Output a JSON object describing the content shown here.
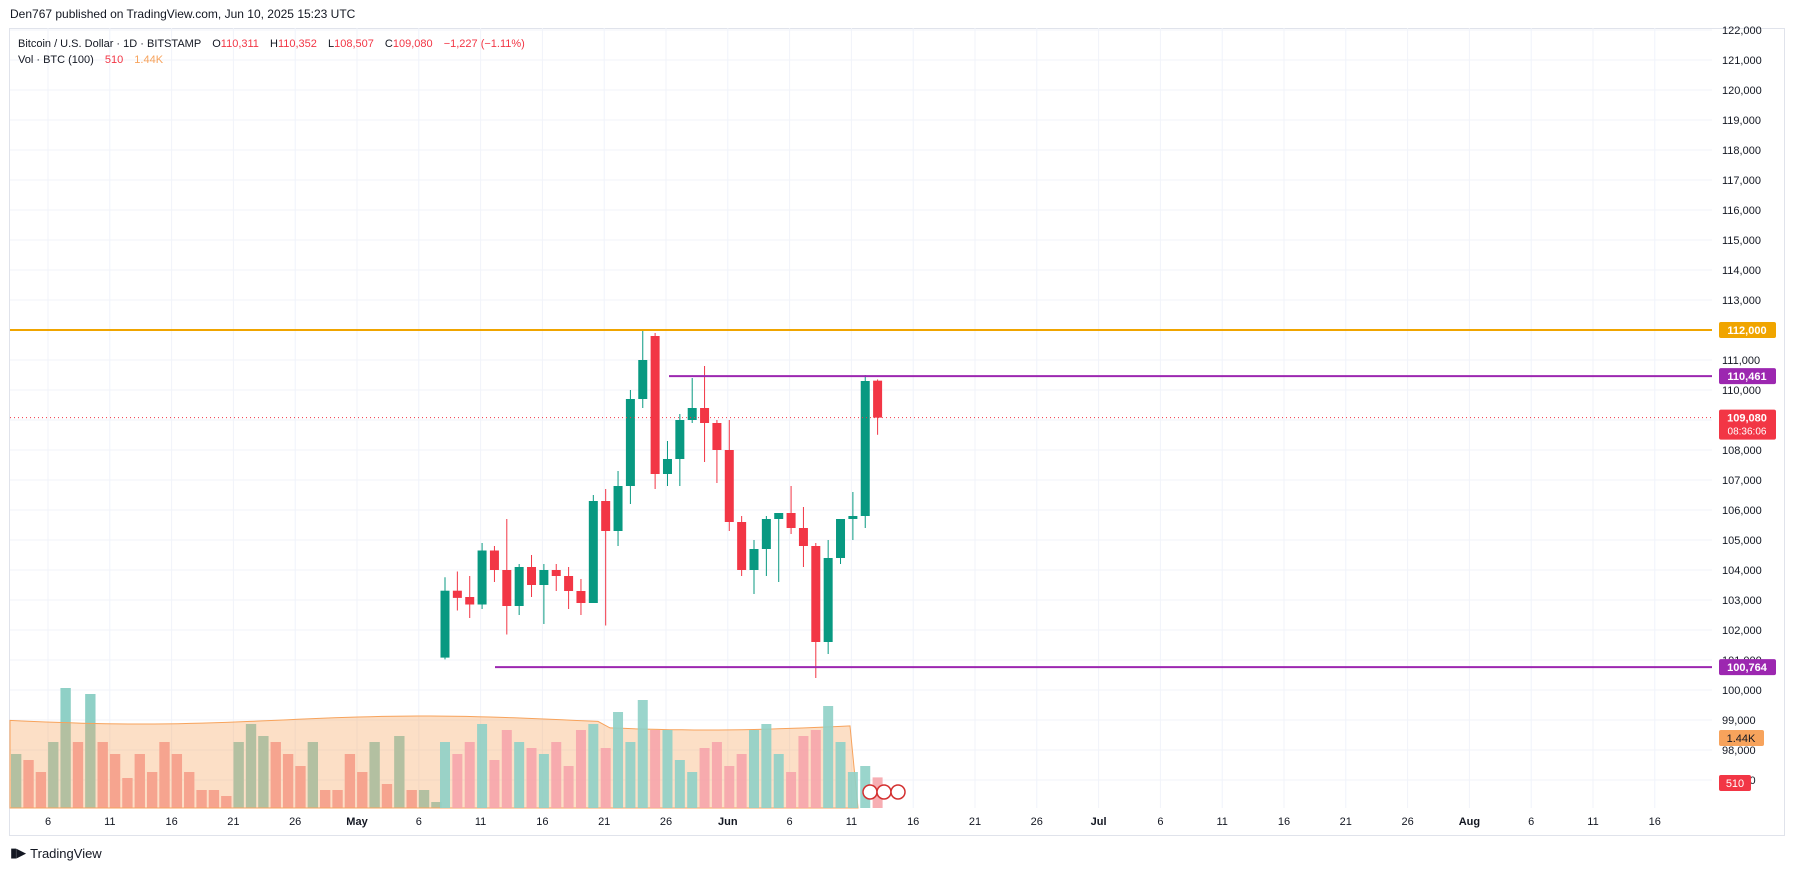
{
  "header": {
    "publish_text": "Den767 published on TradingView.com, Jun 10, 2025 15:23 UTC"
  },
  "legend": {
    "symbol": "Bitcoin / U.S. Dollar · 1D · BITSTAMP",
    "open_label": "O",
    "open": "110,311",
    "high_label": "H",
    "high": "110,352",
    "low_label": "L",
    "low": "108,507",
    "close_label": "C",
    "close": "109,080",
    "change": "−1,227 (−1.11%)",
    "vol_label": "Vol · BTC (100)",
    "vol_value": "510",
    "vol_ma": "1.44K"
  },
  "footer": {
    "brand": "TradingView"
  },
  "colors": {
    "up": "#089981",
    "down": "#f23645",
    "vol_up": "#8fd0c6",
    "vol_down": "#f6a5ab",
    "vol_ma": "#f7a35c",
    "resistance": "#f0a500",
    "level": "#9c27b0",
    "price": "#f23645"
  },
  "chart_data": {
    "type": "candlestick",
    "timeframe": "1D",
    "ylim": [
      97000,
      122000
    ],
    "y_ticks": [
      "122,000",
      "121,000",
      "120,000",
      "119,000",
      "118,000",
      "117,000",
      "116,000",
      "115,000",
      "114,000",
      "113,000",
      "112,000",
      "111,000",
      "110,000",
      "109,000",
      "108,000",
      "107,000",
      "106,000",
      "105,000",
      "104,000",
      "103,000",
      "102,000",
      "101,000",
      "100,000",
      "99,000",
      "98,000",
      "97,000"
    ],
    "x_ticks": [
      "6",
      "11",
      "16",
      "21",
      "26",
      "May",
      "6",
      "11",
      "16",
      "21",
      "26",
      "Jun",
      "6",
      "11",
      "16",
      "21",
      "26",
      "Jul",
      "6",
      "11",
      "16",
      "21",
      "26",
      "Aug",
      "6",
      "11",
      "16"
    ],
    "candles": [
      {
        "o": 101080,
        "h": 103760,
        "l": 101020,
        "c": 103310
      },
      {
        "o": 103310,
        "h": 103950,
        "l": 102650,
        "c": 103070
      },
      {
        "o": 103100,
        "h": 103800,
        "l": 102400,
        "c": 102850
      },
      {
        "o": 102850,
        "h": 104900,
        "l": 102700,
        "c": 104650
      },
      {
        "o": 104650,
        "h": 104800,
        "l": 103600,
        "c": 104000
      },
      {
        "o": 104000,
        "h": 105700,
        "l": 101850,
        "c": 102800
      },
      {
        "o": 102800,
        "h": 104200,
        "l": 102500,
        "c": 104100
      },
      {
        "o": 104100,
        "h": 104500,
        "l": 103100,
        "c": 103500
      },
      {
        "o": 103500,
        "h": 104200,
        "l": 102200,
        "c": 104000
      },
      {
        "o": 104000,
        "h": 104200,
        "l": 103300,
        "c": 103800
      },
      {
        "o": 103800,
        "h": 104100,
        "l": 102700,
        "c": 103300
      },
      {
        "o": 103300,
        "h": 103700,
        "l": 102500,
        "c": 102900
      },
      {
        "o": 102900,
        "h": 106500,
        "l": 102900,
        "c": 106300
      },
      {
        "o": 106300,
        "h": 106700,
        "l": 102150,
        "c": 105300
      },
      {
        "o": 105300,
        "h": 107300,
        "l": 104800,
        "c": 106800
      },
      {
        "o": 106800,
        "h": 110000,
        "l": 106200,
        "c": 109700
      },
      {
        "o": 109700,
        "h": 111980,
        "l": 109400,
        "c": 111000
      },
      {
        "o": 111800,
        "h": 111900,
        "l": 106700,
        "c": 107200
      },
      {
        "o": 107200,
        "h": 108300,
        "l": 106800,
        "c": 107700
      },
      {
        "o": 107700,
        "h": 109200,
        "l": 106800,
        "c": 109000
      },
      {
        "o": 109000,
        "h": 110400,
        "l": 108900,
        "c": 109400
      },
      {
        "o": 109400,
        "h": 110800,
        "l": 107600,
        "c": 108900
      },
      {
        "o": 108900,
        "h": 109000,
        "l": 106900,
        "c": 108000
      },
      {
        "o": 108000,
        "h": 109000,
        "l": 105300,
        "c": 105600
      },
      {
        "o": 105600,
        "h": 105800,
        "l": 103800,
        "c": 104000
      },
      {
        "o": 104000,
        "h": 105000,
        "l": 103200,
        "c": 104700
      },
      {
        "o": 104700,
        "h": 105800,
        "l": 103800,
        "c": 105700
      },
      {
        "o": 105700,
        "h": 105900,
        "l": 103600,
        "c": 105900
      },
      {
        "o": 105900,
        "h": 106800,
        "l": 105200,
        "c": 105400
      },
      {
        "o": 105400,
        "h": 106100,
        "l": 104100,
        "c": 104800
      },
      {
        "o": 104800,
        "h": 104900,
        "l": 100400,
        "c": 101600
      },
      {
        "o": 101600,
        "h": 105000,
        "l": 101200,
        "c": 104400
      },
      {
        "o": 104400,
        "h": 105600,
        "l": 104200,
        "c": 105700
      },
      {
        "o": 105700,
        "h": 106600,
        "l": 105000,
        "c": 105800
      },
      {
        "o": 105800,
        "h": 110500,
        "l": 105400,
        "c": 110300
      },
      {
        "o": 110311,
        "h": 110352,
        "l": 108507,
        "c": 109080
      }
    ],
    "volume": {
      "values": [
        1.1,
        0.9,
        1.1,
        1.4,
        0.8,
        1.3,
        1.1,
        1.0,
        0.9,
        1.1,
        0.7,
        1.3,
        1.4,
        1.0,
        1.6,
        1.1,
        1.8,
        1.3,
        1.3,
        0.8,
        0.6,
        1.0,
        1.1,
        0.7,
        0.9,
        1.3,
        1.4,
        0.9,
        0.6,
        1.2,
        1.3,
        1.7,
        1.1,
        0.6,
        0.7,
        0.51
      ],
      "ma_value": "1.44K",
      "last_value": "510"
    },
    "horizontal_lines": [
      {
        "price": 112000,
        "label": "112,000",
        "color": "#f0a500"
      },
      {
        "price": 110461,
        "label": "110,461",
        "color": "#9c27b0"
      },
      {
        "price": 100764,
        "label": "100,764",
        "color": "#9c27b0"
      }
    ],
    "last_price": {
      "price": 109080,
      "label": "109,080",
      "countdown": "08:36:06"
    }
  }
}
